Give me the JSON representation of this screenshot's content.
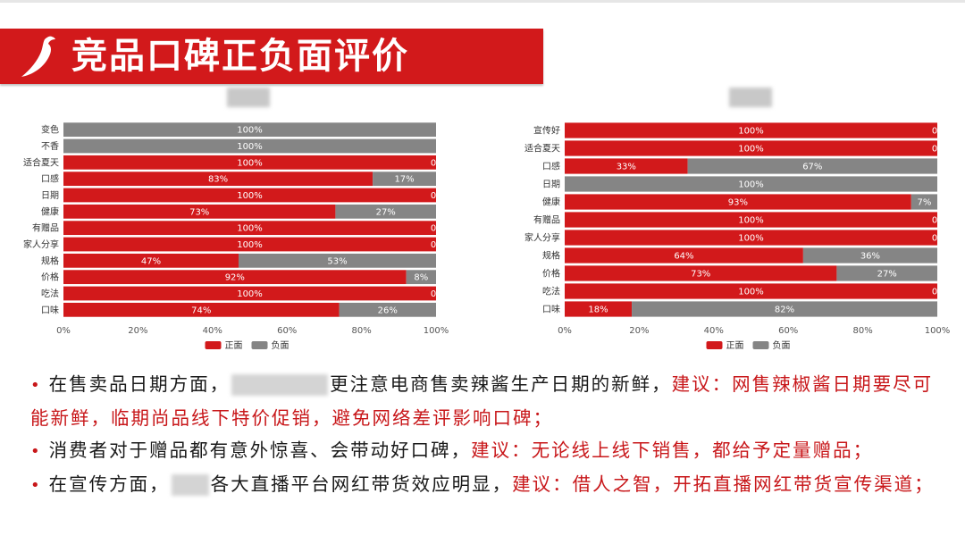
{
  "slide_title": "竞品口碑正负面评价",
  "colors": {
    "positive": "#d2191b",
    "negative": "#858585",
    "title_bar": "#d2191b"
  },
  "chart_data": [
    {
      "type": "bar",
      "orientation": "horizontal-stacked-100",
      "title": "",
      "categories": [
        "变色",
        "不香",
        "适合夏天",
        "口感",
        "日期",
        "健康",
        "有赠品",
        "家人分享",
        "规格",
        "价格",
        "吃法",
        "口味"
      ],
      "series": [
        {
          "name": "正面",
          "values": [
            0,
            0,
            100,
            83,
            100,
            73,
            100,
            100,
            47,
            92,
            100,
            74
          ]
        },
        {
          "name": "负面",
          "values": [
            100,
            100,
            0,
            17,
            0,
            27,
            0,
            0,
            53,
            8,
            0,
            26
          ]
        }
      ],
      "xticks": [
        "0%",
        "20%",
        "40%",
        "60%",
        "80%",
        "100%"
      ],
      "xlim": [
        0,
        100
      ],
      "legend": "bottom"
    },
    {
      "type": "bar",
      "orientation": "horizontal-stacked-100",
      "title": "",
      "categories": [
        "宣传好",
        "适合夏天",
        "口感",
        "日期",
        "健康",
        "有赠品",
        "家人分享",
        "规格",
        "价格",
        "吃法",
        "口味"
      ],
      "series": [
        {
          "name": "正面",
          "values": [
            100,
            100,
            33,
            0,
            93,
            100,
            100,
            64,
            73,
            100,
            18
          ]
        },
        {
          "name": "负面",
          "values": [
            0,
            0,
            67,
            100,
            7,
            0,
            0,
            36,
            27,
            0,
            82
          ]
        }
      ],
      "xticks": [
        "0%",
        "20%",
        "40%",
        "60%",
        "80%",
        "100%"
      ],
      "xlim": [
        0,
        100
      ],
      "legend": "bottom"
    }
  ],
  "bullets": [
    {
      "a": "在售卖品日期方面，",
      "b": "更注意电商售卖辣酱生产日期的新鲜，",
      "c": "建议：网售辣椒酱日期要尽可能新鲜，临期尚品线下特价促销，避免网络差评影响口碑；"
    },
    {
      "a": "消费者对于赠品都有意外惊喜、会带动好口碑，",
      "c": "建议：无论线上线下销售，都给予定量赠品；"
    },
    {
      "a": "在宣传方面，",
      "b": "各大直播平台网红带货效应明显，",
      "c": "建议：借人之智，开拓直播网红带货宣传渠道；"
    }
  ]
}
